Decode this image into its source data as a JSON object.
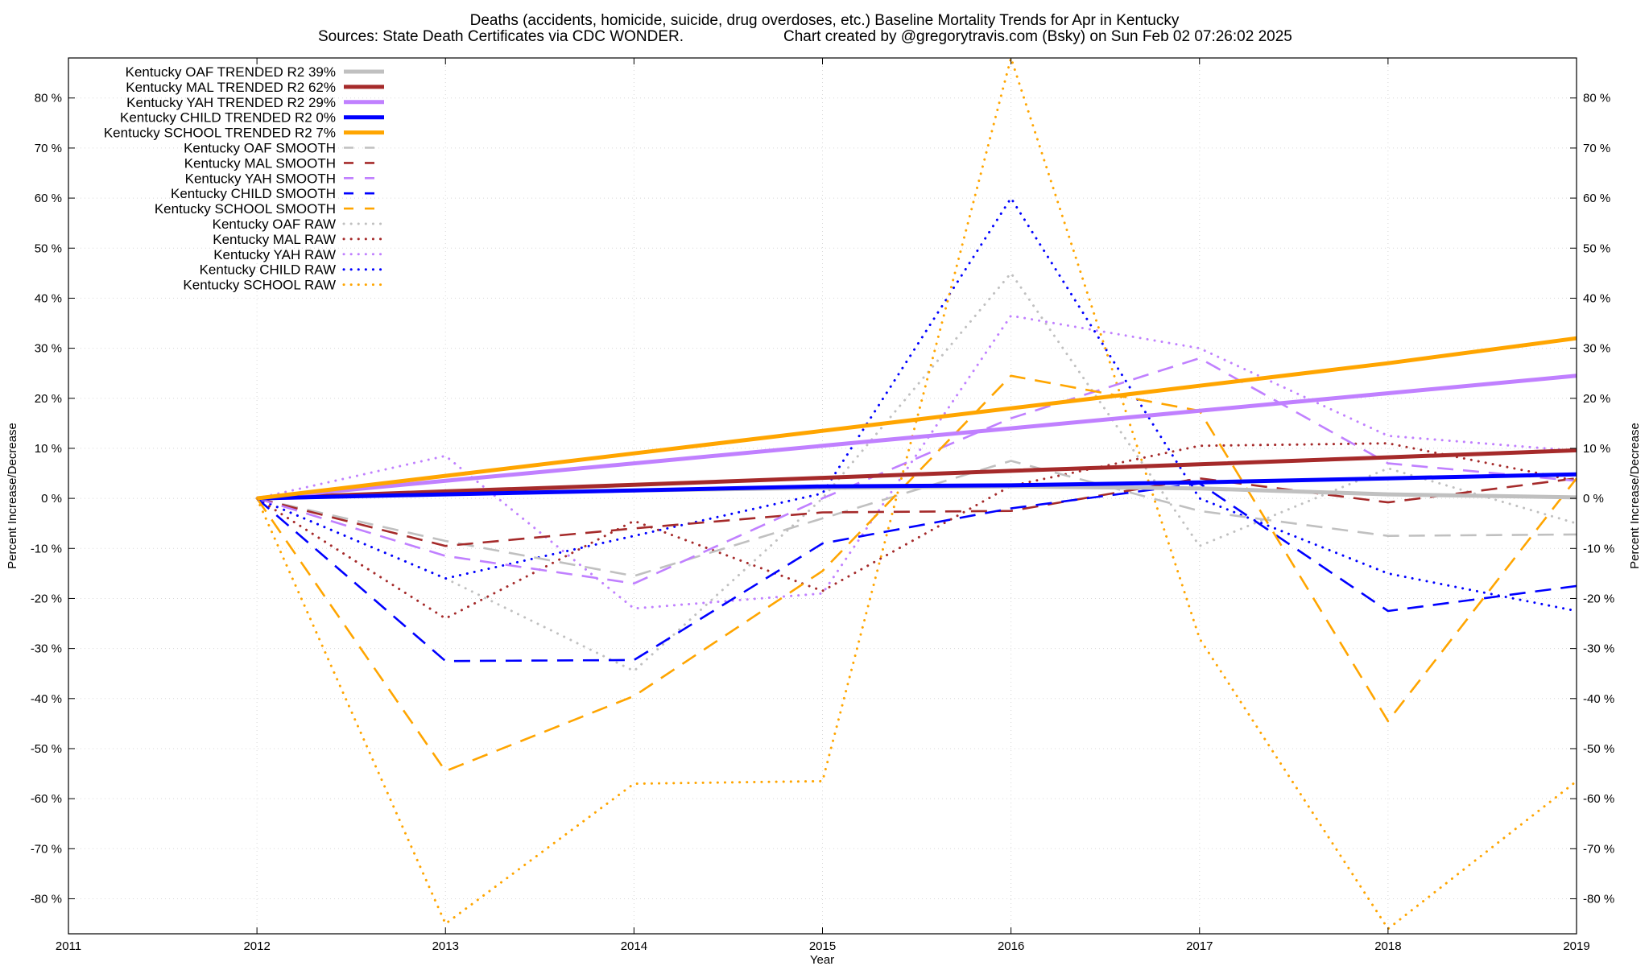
{
  "chart_data": {
    "type": "line",
    "title": "Deaths (accidents, homicide, suicide, drug overdoses, etc.)  Baseline Mortality Trends for Apr in Kentucky",
    "subtitle_left": "Sources: State Death Certificates via CDC WONDER.",
    "subtitle_right": "Chart created by @gregorytravis.com (Bsky) on Sun Feb 02 07:26:02 2025",
    "xlabel": "Year",
    "ylabel_left": "Percent Increase/Decrease",
    "ylabel_right": "Percent Increase/Decrease",
    "xlim": [
      2011,
      2019
    ],
    "ylim": [
      -87,
      88
    ],
    "x_ticks": [
      "2011",
      "2012",
      "2013",
      "2014",
      "2015",
      "2016",
      "2017",
      "2018",
      "2019"
    ],
    "y_ticks": [
      "80 %",
      "70 %",
      "60 %",
      "50 %",
      "40 %",
      "30 %",
      "20 %",
      "10 %",
      "0 %",
      "-10 %",
      "-20 %",
      "-30 %",
      "-40 %",
      "-50 %",
      "-60 %",
      "-70 %",
      "-80 %"
    ],
    "x": [
      2012,
      2013,
      2014,
      2015,
      2016,
      2017,
      2018,
      2019
    ],
    "series": [
      {
        "name": "Kentucky OAF TRENDED R2  39%",
        "style": "solid",
        "color": "#c0c0c0",
        "values": [
          0,
          0.9,
          1.6,
          2.1,
          2.4,
          2.0,
          0.8,
          0.2
        ]
      },
      {
        "name": "Kentucky MAL TRENDED R2  62%",
        "style": "solid",
        "color": "#a52a2a",
        "values": [
          0,
          1.4,
          2.7,
          4.1,
          5.5,
          6.8,
          8.2,
          9.6
        ]
      },
      {
        "name": "Kentucky YAH TRENDED R2  29%",
        "style": "solid",
        "color": "#c080ff",
        "values": [
          0,
          3.5,
          7.0,
          10.5,
          14.0,
          17.5,
          21.0,
          24.5
        ]
      },
      {
        "name": "Kentucky CHILD TRENDED R2   0%",
        "style": "solid",
        "color": "#0000ff",
        "values": [
          0,
          0.8,
          1.6,
          2.4,
          2.6,
          3.2,
          4.0,
          4.8
        ]
      },
      {
        "name": "Kentucky SCHOOL TRENDED R2   7%",
        "style": "solid",
        "color": "#ffa500",
        "values": [
          0,
          4.5,
          9.0,
          13.5,
          18.0,
          22.5,
          27.0,
          32.0
        ]
      },
      {
        "name": "Kentucky OAF SMOOTH",
        "style": "dashed",
        "color": "#c0c0c0",
        "values": [
          0,
          -8.5,
          -15.5,
          -4,
          7.5,
          -2.5,
          -7.5,
          -7.2
        ]
      },
      {
        "name": "Kentucky MAL SMOOTH",
        "style": "dashed",
        "color": "#a52a2a",
        "values": [
          0,
          -9.5,
          -6,
          -2.8,
          -2.5,
          4,
          -0.8,
          4
        ]
      },
      {
        "name": "Kentucky YAH SMOOTH",
        "style": "dashed",
        "color": "#c080ff",
        "values": [
          0,
          -11.5,
          -17,
          0,
          16,
          28,
          7,
          3.5
        ]
      },
      {
        "name": "Kentucky CHILD SMOOTH",
        "style": "dashed",
        "color": "#0000ff",
        "values": [
          0,
          -32.5,
          -32.3,
          -9,
          -2,
          3,
          -22.5,
          -17.5
        ]
      },
      {
        "name": "Kentucky SCHOOL SMOOTH",
        "style": "dashed",
        "color": "#ffa500",
        "values": [
          0,
          -54.5,
          -39.5,
          -14.5,
          24.5,
          17.5,
          -44.5,
          4
        ]
      },
      {
        "name": "Kentucky OAF RAW",
        "style": "dotted",
        "color": "#c0c0c0",
        "values": [
          0,
          -16,
          -34.5,
          0,
          45,
          -9.5,
          6,
          -5
        ]
      },
      {
        "name": "Kentucky MAL RAW",
        "style": "dotted",
        "color": "#a52a2a",
        "values": [
          0,
          -24,
          -4.5,
          -18.5,
          2.5,
          10.5,
          11,
          3.5
        ]
      },
      {
        "name": "Kentucky YAH RAW",
        "style": "dotted",
        "color": "#c080ff",
        "values": [
          0,
          8.5,
          -22,
          -19,
          36.5,
          30,
          12.5,
          9.5
        ]
      },
      {
        "name": "Kentucky CHILD RAW",
        "style": "dotted",
        "color": "#0000ff",
        "values": [
          0,
          -16,
          -7.5,
          1,
          60,
          0,
          -15,
          -22.5
        ]
      },
      {
        "name": "Kentucky SCHOOL RAW",
        "style": "dotted",
        "color": "#ffa500",
        "values": [
          0,
          -85,
          -57,
          -56.5,
          88,
          -28,
          -86,
          -56.5
        ]
      }
    ]
  }
}
